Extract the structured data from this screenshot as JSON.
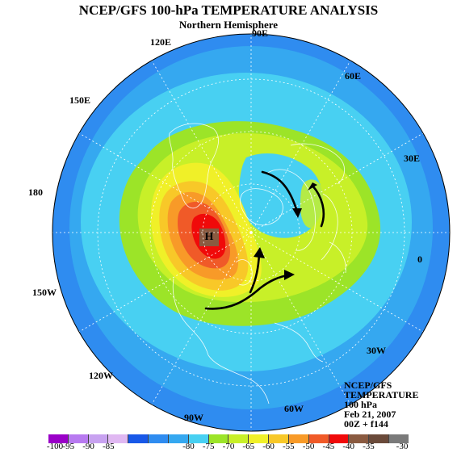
{
  "header": {
    "title": "NCEP/GFS 100-hPa TEMPERATURE ANALYSIS",
    "subtitle": "Northern Hemisphere"
  },
  "map": {
    "projection": "north-polar-stereographic",
    "high_marker": "H",
    "longitude_labels": {
      "lon_90e": "90E",
      "lon_60e": "60E",
      "lon_30e": "30E",
      "lon_0": "0",
      "lon_30w": "30W",
      "lon_60w": "60W",
      "lon_90w": "90W",
      "lon_120w": "120W",
      "lon_150w": "150W",
      "lon_180": "180",
      "lon_150e": "150E",
      "lon_120e": "120E"
    }
  },
  "info_box": {
    "line1": "NCEP/GFS",
    "line2": "TEMPERATURE",
    "line3": "100 hPa",
    "line4": "Feb 21, 2007",
    "line5": "00Z + f144"
  },
  "colorbar": {
    "colors": [
      "#9a00c8",
      "#b87af0",
      "#c8a2f0",
      "#e0b8f2",
      "#1858e8",
      "#2f8cf0",
      "#35a8f0",
      "#48d0f2",
      "#9ce428",
      "#c8f028",
      "#f0f028",
      "#f8c828",
      "#f89a28",
      "#f05a28",
      "#f00a0a",
      "#8a5a40",
      "#6a4a3a",
      "#7a7a7a"
    ],
    "labels": [
      "-100",
      "-95",
      "-90",
      "-85",
      "-80",
      "-75",
      "-70",
      "-65",
      "-60",
      "-55",
      "-50",
      "-45",
      "-40",
      "-35",
      "-30"
    ]
  }
}
